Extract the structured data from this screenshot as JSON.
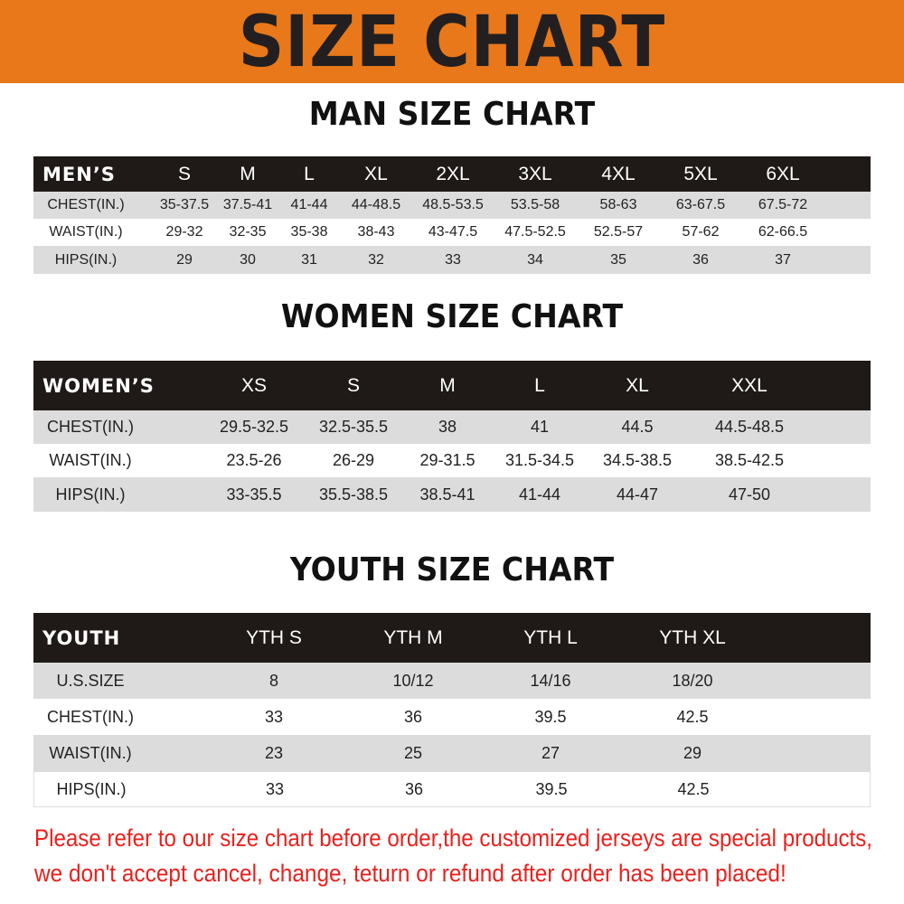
{
  "banner": {
    "title": "SIZE CHART",
    "color": "#E8781A"
  },
  "men": {
    "title": "MAN SIZE CHART",
    "header": [
      "MEN’S",
      "S",
      "M",
      "L",
      "XL",
      "2XL",
      "3XL",
      "4XL",
      "5XL",
      "6XL"
    ],
    "rows": [
      [
        "CHEST(IN.)",
        "35-37.5",
        "37.5-41",
        "41-44",
        "44-48.5",
        "48.5-53.5",
        "53.5-58",
        "58-63",
        "63-67.5",
        "67.5-72"
      ],
      [
        "WAIST(IN.)",
        "29-32",
        "32-35",
        "35-38",
        "38-43",
        "43-47.5",
        "47.5-52.5",
        "52.5-57",
        "57-62",
        "62-66.5"
      ],
      [
        "HIPS(IN.)",
        "29",
        "30",
        "31",
        "32",
        "33",
        "34",
        "35",
        "36",
        "37"
      ]
    ]
  },
  "women": {
    "title": "WOMEN SIZE CHART",
    "header": [
      "WOMEN’S",
      "XS",
      "S",
      "M",
      "L",
      "XL",
      "XXL"
    ],
    "rows": [
      [
        "CHEST(IN.)",
        "29.5-32.5",
        "32.5-35.5",
        "38",
        "41",
        "44.5",
        "44.5-48.5"
      ],
      [
        "WAIST(IN.)",
        "23.5-26",
        "26-29",
        "29-31.5",
        "31.5-34.5",
        "34.5-38.5",
        "38.5-42.5"
      ],
      [
        "HIPS(IN.)",
        "33-35.5",
        "35.5-38.5",
        "38.5-41",
        "41-44",
        "44-47",
        "47-50"
      ]
    ]
  },
  "youth": {
    "title": "YOUTH SIZE CHART",
    "header": [
      "YOUTH",
      "YTH S",
      "YTH M",
      "YTH L",
      "YTH XL"
    ],
    "rows": [
      [
        "U.S.SIZE",
        "8",
        "10/12",
        "14/16",
        "18/20"
      ],
      [
        "CHEST(IN.)",
        "33",
        "36",
        "39.5",
        "42.5"
      ],
      [
        "WAIST(IN.)",
        "23",
        "25",
        "27",
        "29"
      ],
      [
        "HIPS(IN.)",
        "33",
        "36",
        "39.5",
        "42.5"
      ]
    ]
  },
  "notice": {
    "line1": "Please refer to our size chart before order,the customized jerseys are special products,",
    "line2": "we don't accept cancel, change, teturn or refund after order has been placed!",
    "color": "#E8211D"
  }
}
